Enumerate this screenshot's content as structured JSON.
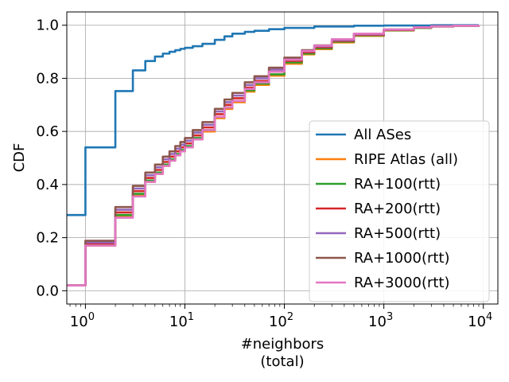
{
  "chart_data": {
    "type": "line",
    "title": "",
    "xlabel": "#neighbors",
    "xlabel_line2": "(total)",
    "ylabel": "CDF",
    "xscale": "log",
    "xlim": [
      0.65,
      14000
    ],
    "ylim": [
      -0.05,
      1.05
    ],
    "grid": true,
    "legend_position": "lower-right",
    "x_ticks": [
      {
        "value": 1,
        "base": "10",
        "exp": "0"
      },
      {
        "value": 10,
        "base": "10",
        "exp": "1"
      },
      {
        "value": 100,
        "base": "10",
        "exp": "2"
      },
      {
        "value": 1000,
        "base": "10",
        "exp": "3"
      },
      {
        "value": 10000,
        "base": "10",
        "exp": "4"
      }
    ],
    "y_ticks": [
      {
        "value": 0.0,
        "label": "0.0"
      },
      {
        "value": 0.2,
        "label": "0.2"
      },
      {
        "value": 0.4,
        "label": "0.4"
      },
      {
        "value": 0.6,
        "label": "0.6"
      },
      {
        "value": 0.8,
        "label": "0.8"
      },
      {
        "value": 1.0,
        "label": "1.0"
      }
    ],
    "series": [
      {
        "name": "All ASes",
        "color": "#1f77b4",
        "x": [
          0.65,
          1,
          2,
          3,
          4,
          5,
          6,
          7,
          8,
          9,
          10,
          12,
          15,
          20,
          25,
          30,
          40,
          50,
          70,
          100,
          200,
          500,
          1000,
          3000,
          9000
        ],
        "y": [
          0.285,
          0.54,
          0.752,
          0.83,
          0.865,
          0.882,
          0.893,
          0.9,
          0.906,
          0.911,
          0.915,
          0.921,
          0.93,
          0.945,
          0.958,
          0.968,
          0.975,
          0.979,
          0.985,
          0.99,
          0.995,
          0.998,
          0.999,
          1.0,
          1.0
        ]
      },
      {
        "name": "RIPE Atlas (all)",
        "color": "#ff7f0e",
        "x": [
          0.65,
          1,
          2,
          3,
          4,
          5,
          6,
          7,
          8,
          9,
          10,
          12,
          15,
          20,
          25,
          30,
          40,
          50,
          70,
          100,
          150,
          200,
          300,
          500,
          1000,
          2000,
          3000,
          5000,
          9000
        ],
        "y": [
          0.02,
          0.17,
          0.28,
          0.36,
          0.41,
          0.44,
          0.47,
          0.49,
          0.51,
          0.525,
          0.54,
          0.57,
          0.6,
          0.65,
          0.685,
          0.71,
          0.75,
          0.775,
          0.81,
          0.855,
          0.89,
          0.91,
          0.935,
          0.96,
          0.98,
          0.99,
          0.995,
          0.998,
          1.0
        ]
      },
      {
        "name": "RA+100(rtt)",
        "color": "#2ca02c",
        "x": [
          0.65,
          1,
          2,
          3,
          4,
          5,
          6,
          7,
          8,
          9,
          10,
          12,
          15,
          20,
          25,
          30,
          40,
          50,
          70,
          100,
          150,
          200,
          300,
          500,
          1000,
          2000,
          3000,
          5000,
          9000
        ],
        "y": [
          0.02,
          0.172,
          0.285,
          0.365,
          0.415,
          0.445,
          0.475,
          0.495,
          0.515,
          0.53,
          0.545,
          0.575,
          0.605,
          0.655,
          0.69,
          0.715,
          0.755,
          0.78,
          0.815,
          0.86,
          0.893,
          0.913,
          0.938,
          0.962,
          0.981,
          0.99,
          0.995,
          0.998,
          1.0
        ]
      },
      {
        "name": "RA+200(rtt)",
        "color": "#d62728",
        "x": [
          0.65,
          1,
          2,
          3,
          4,
          5,
          6,
          7,
          8,
          9,
          10,
          12,
          15,
          20,
          25,
          30,
          40,
          50,
          70,
          100,
          150,
          200,
          300,
          500,
          1000,
          2000,
          3000,
          5000,
          9000
        ],
        "y": [
          0.02,
          0.178,
          0.295,
          0.375,
          0.425,
          0.455,
          0.485,
          0.505,
          0.525,
          0.54,
          0.555,
          0.585,
          0.615,
          0.665,
          0.7,
          0.725,
          0.765,
          0.79,
          0.825,
          0.866,
          0.898,
          0.917,
          0.941,
          0.964,
          0.982,
          0.991,
          0.996,
          0.998,
          1.0
        ]
      },
      {
        "name": "RA+500(rtt)",
        "color": "#9467bd",
        "x": [
          0.65,
          1,
          2,
          3,
          4,
          5,
          6,
          7,
          8,
          9,
          10,
          12,
          15,
          20,
          25,
          30,
          40,
          50,
          70,
          100,
          150,
          200,
          300,
          500,
          1000,
          2000,
          3000,
          5000,
          9000
        ],
        "y": [
          0.02,
          0.182,
          0.305,
          0.385,
          0.435,
          0.465,
          0.495,
          0.515,
          0.535,
          0.55,
          0.565,
          0.595,
          0.625,
          0.675,
          0.71,
          0.735,
          0.775,
          0.8,
          0.833,
          0.872,
          0.902,
          0.921,
          0.944,
          0.966,
          0.983,
          0.992,
          0.996,
          0.998,
          1.0
        ]
      },
      {
        "name": "RA+1000(rtt)",
        "color": "#8c564b",
        "x": [
          0.65,
          1,
          2,
          3,
          4,
          5,
          6,
          7,
          8,
          9,
          10,
          12,
          15,
          20,
          25,
          30,
          40,
          50,
          70,
          100,
          150,
          200,
          300,
          500,
          1000,
          2000,
          3000,
          5000,
          9000
        ],
        "y": [
          0.02,
          0.188,
          0.315,
          0.395,
          0.445,
          0.475,
          0.505,
          0.525,
          0.545,
          0.56,
          0.575,
          0.605,
          0.635,
          0.685,
          0.72,
          0.745,
          0.785,
          0.808,
          0.84,
          0.878,
          0.906,
          0.924,
          0.947,
          0.968,
          0.984,
          0.992,
          0.996,
          0.998,
          1.0
        ]
      },
      {
        "name": "RA+3000(rtt)",
        "color": "#e377c2",
        "x": [
          0.65,
          1,
          2,
          3,
          4,
          5,
          6,
          7,
          8,
          9,
          10,
          12,
          15,
          20,
          25,
          30,
          40,
          50,
          70,
          100,
          150,
          200,
          300,
          500,
          1000,
          2000,
          3000,
          5000,
          9000
        ],
        "y": [
          0.02,
          0.17,
          0.275,
          0.355,
          0.41,
          0.44,
          0.47,
          0.49,
          0.51,
          0.525,
          0.54,
          0.57,
          0.605,
          0.655,
          0.69,
          0.715,
          0.76,
          0.785,
          0.825,
          0.87,
          0.903,
          0.923,
          0.947,
          0.968,
          0.984,
          0.992,
          0.996,
          0.998,
          1.0
        ]
      }
    ]
  }
}
